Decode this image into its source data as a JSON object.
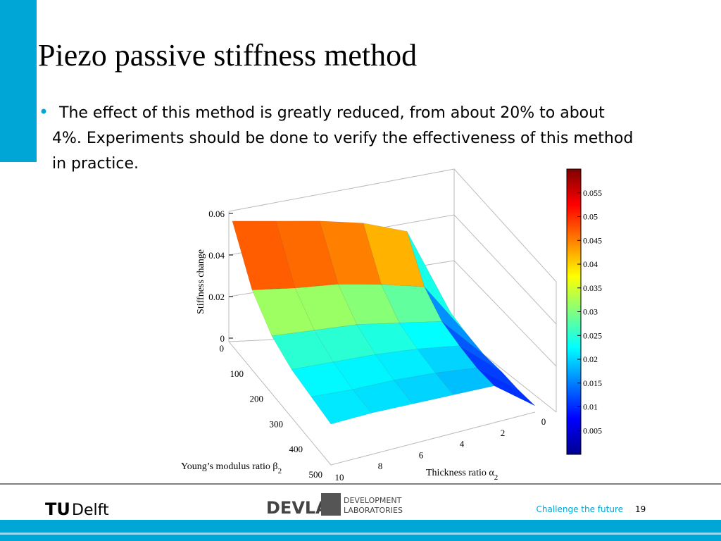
{
  "title": "Piezo passive stiffness method",
  "bullet": {
    "lines": [
      "The effect of this method is greatly reduced,  from about 20% to about",
      "4%. Experiments should be done to verify the effectiveness of this method",
      "in practice."
    ]
  },
  "figure": {
    "z_label": "Stiffness change",
    "young_label": "Young’s modulus ratio β",
    "young_sub": "2",
    "thickness_label": "Thickness ratio α",
    "thickness_sub": "2",
    "zticks": [
      0,
      0.02,
      0.04,
      0.06
    ],
    "young_ticks": [
      0,
      100,
      200,
      300,
      400,
      500
    ],
    "thickness_ticks": [
      10,
      8,
      6,
      4,
      2,
      0
    ],
    "colorbar": {
      "lim": [
        0,
        0.06
      ],
      "ticks": [
        0.005,
        0.01,
        0.015,
        0.02,
        0.025,
        0.03,
        0.035,
        0.04,
        0.045,
        0.05,
        0.055
      ]
    },
    "surface": {
      "young": [
        0,
        100,
        200,
        300,
        400,
        500
      ],
      "thickness": [
        10,
        8,
        6,
        4,
        2,
        0
      ],
      "z": [
        [
          0.058,
          0.057,
          0.056,
          0.054,
          0.049,
          0.009
        ],
        [
          0.037,
          0.036,
          0.036,
          0.034,
          0.031,
          0.006
        ],
        [
          0.027,
          0.027,
          0.027,
          0.025,
          0.023,
          0.004
        ],
        [
          0.023,
          0.023,
          0.023,
          0.022,
          0.02,
          0.004
        ],
        [
          0.022,
          0.021,
          0.021,
          0.02,
          0.018,
          0.003
        ],
        [
          0.021,
          0.021,
          0.02,
          0.019,
          0.018,
          0.003
        ]
      ]
    }
  },
  "footer": {
    "tu": "TU",
    "delft": "Delft",
    "devlab": "DEVLAB",
    "dev1": "DEVELOPMENT",
    "dev2": "LABORATORIES",
    "slogan": "Challenge the future",
    "page": "19"
  }
}
